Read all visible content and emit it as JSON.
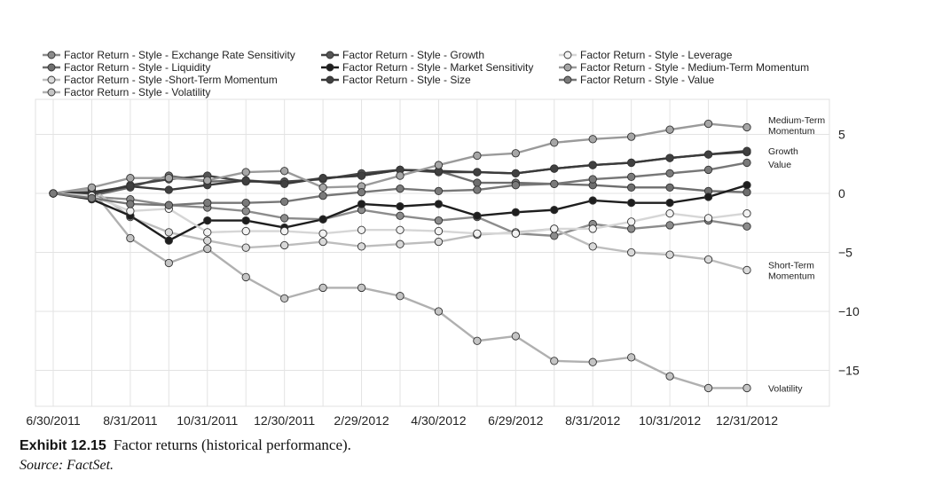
{
  "chart_data": {
    "type": "line",
    "x": [
      "6/30/2011",
      "7/29/2011",
      "8/31/2011",
      "9/30/2011",
      "10/31/2011",
      "11/30/2011",
      "12/30/2011",
      "1/31/2012",
      "2/29/2012",
      "3/30/2012",
      "4/30/2012",
      "5/31/2012",
      "6/29/2012",
      "7/31/2012",
      "8/31/2012",
      "9/28/2012",
      "10/31/2012",
      "11/30/2012",
      "12/31/2012"
    ],
    "x_tick_labels": [
      "6/30/2011",
      "8/31/2011",
      "10/31/2011",
      "12/30/2011",
      "2/29/2012",
      "4/30/2012",
      "6/29/2012",
      "8/31/2012",
      "10/31/2012",
      "12/31/2012"
    ],
    "y_tick_labels": [
      "5",
      "0",
      "−5",
      "−10",
      "−15"
    ],
    "y_ticks": [
      5,
      0,
      -5,
      -10,
      -15
    ],
    "ylim": [
      -18,
      8
    ],
    "grid": true,
    "legend_position": "top",
    "series": [
      {
        "name": "Factor Return - Style - Exchange Rate Sensitivity",
        "color": "#8c8c8c",
        "line": "#8c8c8c",
        "values": [
          0,
          -0.3,
          -0.5,
          -1.0,
          -1.2,
          -1.5,
          -2.1,
          -2.2,
          -1.4,
          -1.9,
          -2.3,
          -2.0,
          -3.4,
          -3.6,
          -2.6,
          -3.0,
          -2.7,
          -2.3,
          -2.8
        ]
      },
      {
        "name": "Factor Return - Style - Liquidity",
        "color": "#6e6e6e",
        "line": "#6e6e6e",
        "values": [
          0,
          -0.2,
          0.5,
          1.5,
          1.0,
          1.1,
          0.9,
          1.3,
          1.5,
          2.0,
          1.9,
          0.9,
          0.9,
          0.8,
          0.7,
          0.5,
          0.5,
          0.2,
          0.1
        ]
      },
      {
        "name": "Factor Return - Style -Short-Term Momentum",
        "color": "#d9d9d9",
        "line": "#bdbdbd",
        "values": [
          0,
          0.4,
          -2.0,
          -3.3,
          -4.0,
          -4.6,
          -4.4,
          -4.1,
          -4.5,
          -4.3,
          -4.1,
          -3.5,
          -3.3,
          -3.0,
          -4.5,
          -5.0,
          -5.2,
          -5.6,
          -6.5
        ]
      },
      {
        "name": "Factor Return - Style - Volatility",
        "color": "#c4c4c4",
        "line": "#b0b0b0",
        "values": [
          0,
          0.3,
          -3.8,
          -5.9,
          -4.7,
          -7.1,
          -8.9,
          -8.0,
          -8.0,
          -8.7,
          -10.0,
          -12.5,
          -12.1,
          -14.2,
          -14.3,
          -13.9,
          -15.5,
          -16.5,
          -16.5
        ]
      },
      {
        "name": "Factor Return - Style - Growth",
        "color": "#555555",
        "line": "#444444",
        "values": [
          0,
          -0.1,
          0.7,
          1.2,
          1.5,
          1.0,
          1.0,
          1.2,
          1.7,
          2.0,
          1.8,
          1.8,
          1.7,
          2.1,
          2.4,
          2.6,
          3.0,
          3.3,
          3.5
        ]
      },
      {
        "name": "Factor Return - Style - Market Sensitivity",
        "color": "#1e1e1e",
        "line": "#1e1e1e",
        "values": [
          0,
          -0.5,
          -1.9,
          -4.0,
          -2.3,
          -2.3,
          -2.9,
          -2.2,
          -0.9,
          -1.1,
          -0.9,
          -1.9,
          -1.6,
          -1.4,
          -0.6,
          -0.8,
          -0.8,
          -0.3,
          0.7
        ]
      },
      {
        "name": "Factor Return - Style - Size",
        "color": "#404040",
        "line": "#3a3a3a",
        "values": [
          0,
          0.1,
          0.6,
          0.3,
          0.7,
          1.1,
          0.8,
          1.3,
          1.5,
          2.0,
          1.9,
          1.8,
          1.7,
          2.1,
          2.4,
          2.6,
          3.0,
          3.3,
          3.6
        ]
      },
      {
        "name": "Factor Return - Style - Leverage",
        "color": "#f2f2f2",
        "line": "#d6d6d6",
        "values": [
          0,
          -0.2,
          -1.5,
          -1.3,
          -3.3,
          -3.2,
          -3.2,
          -3.4,
          -3.1,
          -3.1,
          -3.2,
          -3.4,
          -3.4,
          -3.0,
          -3.0,
          -2.4,
          -1.7,
          -2.1,
          -1.7
        ]
      },
      {
        "name": "Factor Return - Style - Medium-Term Momentum",
        "color": "#a6a6a6",
        "line": "#9a9a9a",
        "values": [
          0,
          0.5,
          1.3,
          1.3,
          1.1,
          1.8,
          1.9,
          0.5,
          0.6,
          1.5,
          2.4,
          3.2,
          3.4,
          4.3,
          4.6,
          4.8,
          5.4,
          5.9,
          5.6
        ]
      },
      {
        "name": "Factor Return - Style - Value",
        "color": "#7a7a7a",
        "line": "#777777",
        "values": [
          0,
          -0.4,
          -0.9,
          -1.0,
          -0.8,
          -0.8,
          -0.7,
          -0.2,
          0.1,
          0.4,
          0.2,
          0.3,
          0.7,
          0.8,
          1.2,
          1.4,
          1.7,
          2.0,
          2.6
        ]
      }
    ],
    "annotations": [
      {
        "text": "Medium-Term\nMomentum",
        "y": 5.8
      },
      {
        "text": "Growth",
        "y": 3.6
      },
      {
        "text": "Value",
        "y": 2.5
      },
      {
        "text": "Short-Term\nMomentum",
        "y": -6.5
      },
      {
        "text": "Volatility",
        "y": -16.5
      }
    ]
  },
  "caption": {
    "exhibit": "Exhibit 12.15",
    "text": "Factor returns (historical performance).",
    "source": "Source: FactSet."
  }
}
